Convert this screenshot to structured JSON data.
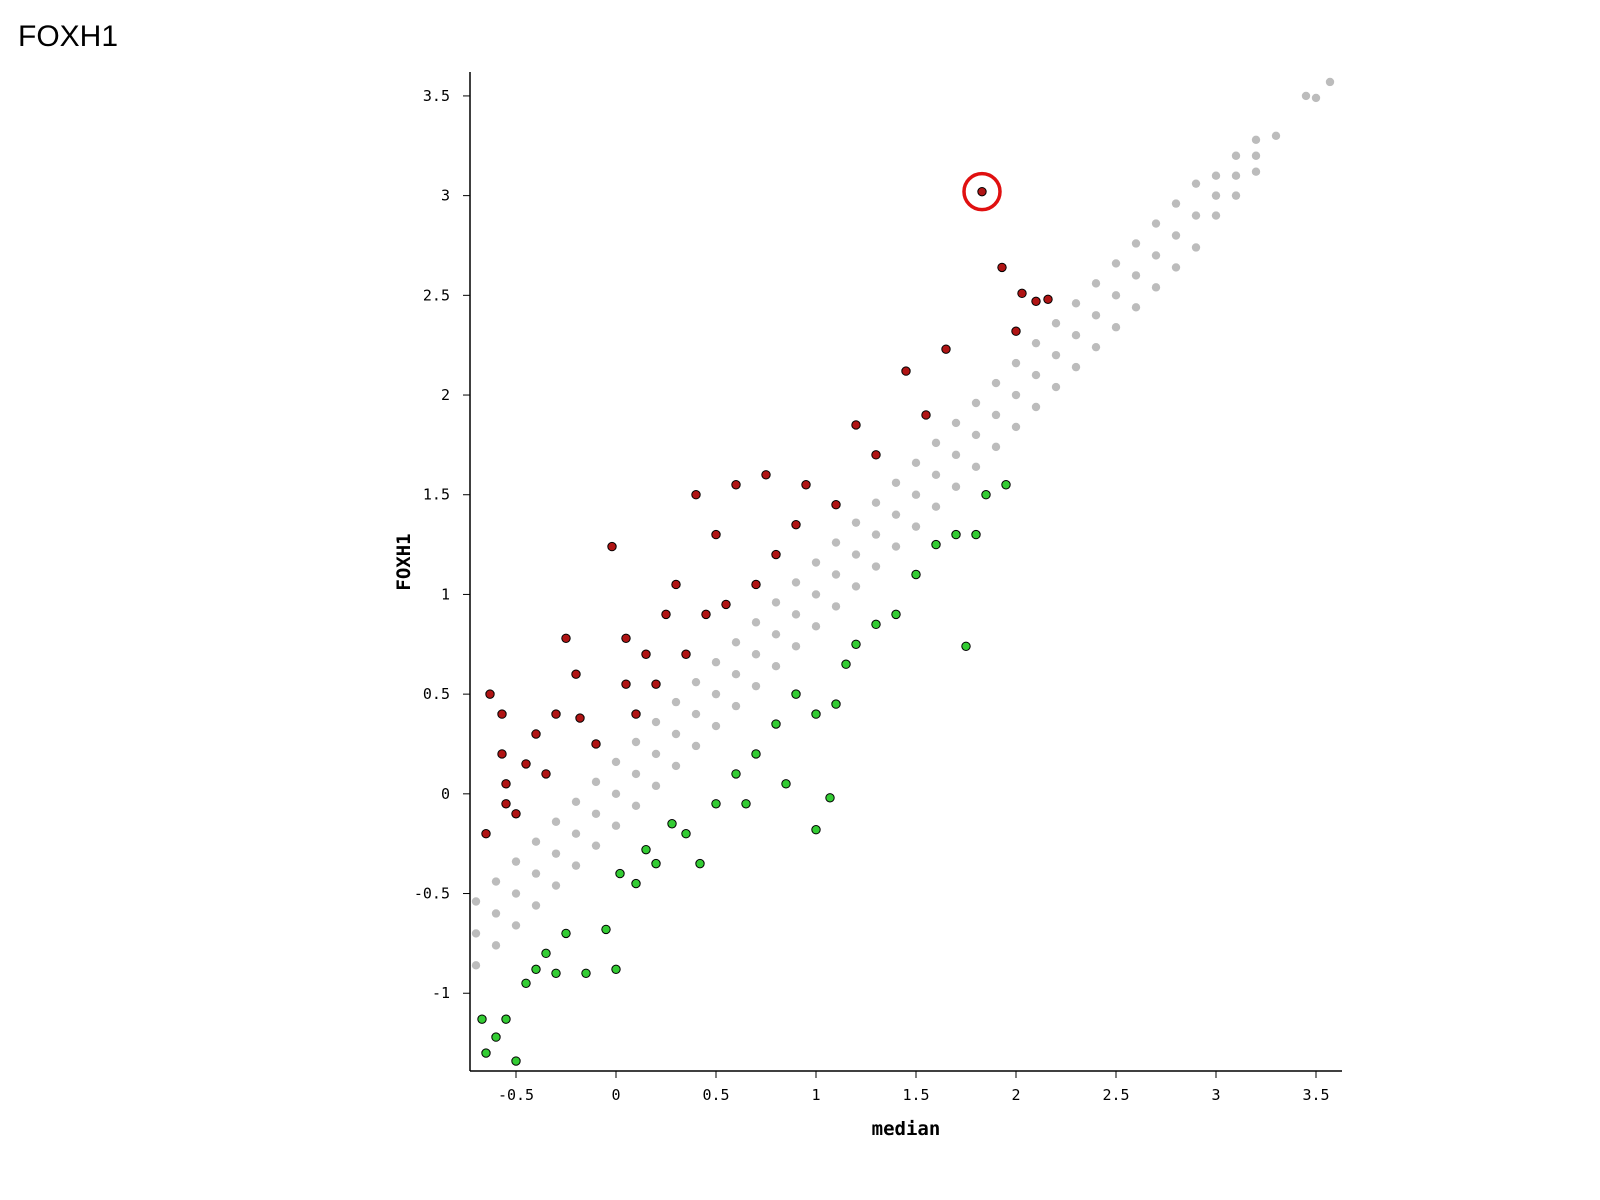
{
  "page_title": "FOXH1",
  "chart_data": {
    "type": "scatter",
    "x_label": "median",
    "y_label": "FOXH1",
    "xlim": [
      -0.73,
      3.63
    ],
    "ylim": [
      -1.39,
      3.62
    ],
    "xticks": [
      -0.5,
      0,
      0.5,
      1,
      1.5,
      2,
      2.5,
      3,
      3.5
    ],
    "yticks": [
      -1,
      -0.5,
      0,
      0.5,
      1,
      1.5,
      2,
      2.5,
      3,
      3.5
    ],
    "highlight_color": "#e01010",
    "series": [
      {
        "color": "#bcbcbc",
        "stroke": "none",
        "x": [
          -0.7,
          -0.7,
          -0.7,
          -0.6,
          -0.6,
          -0.6,
          -0.5,
          -0.5,
          -0.5,
          -0.4,
          -0.4,
          -0.4,
          -0.3,
          -0.3,
          -0.3,
          -0.2,
          -0.2,
          -0.2,
          -0.1,
          -0.1,
          -0.1,
          0,
          0,
          0,
          0.1,
          0.1,
          0.1,
          0.2,
          0.2,
          0.2,
          0.3,
          0.3,
          0.3,
          0.4,
          0.4,
          0.4,
          0.5,
          0.5,
          0.5,
          0.6,
          0.6,
          0.6,
          0.7,
          0.7,
          0.7,
          0.8,
          0.8,
          0.8,
          0.9,
          0.9,
          0.9,
          1.0,
          1.0,
          1.0,
          1.1,
          1.1,
          1.1,
          1.2,
          1.2,
          1.2,
          1.3,
          1.3,
          1.3,
          1.4,
          1.4,
          1.4,
          1.5,
          1.5,
          1.5,
          1.6,
          1.6,
          1.6,
          1.7,
          1.7,
          1.7,
          1.8,
          1.8,
          1.8,
          1.9,
          1.9,
          1.9,
          2.0,
          2.0,
          2.0,
          2.1,
          2.1,
          2.1,
          2.2,
          2.2,
          2.2,
          2.3,
          2.3,
          2.3,
          2.4,
          2.4,
          2.4,
          2.5,
          2.5,
          2.5,
          2.6,
          2.6,
          2.6,
          2.7,
          2.7,
          2.7,
          2.8,
          2.8,
          2.8,
          2.9,
          2.9,
          2.9,
          3.0,
          3.0,
          3.0,
          3.1,
          3.1,
          3.1,
          3.2,
          3.2,
          3.2,
          3.3,
          3.45,
          3.5,
          3.57
        ],
        "y": [
          -0.86,
          -0.7,
          -0.54,
          -0.76,
          -0.6,
          -0.44,
          -0.66,
          -0.5,
          -0.34,
          -0.56,
          -0.4,
          -0.24,
          -0.46,
          -0.3,
          -0.14,
          -0.36,
          -0.2,
          -0.04,
          -0.26,
          -0.1,
          0.06,
          -0.16,
          0,
          0.16,
          -0.06,
          0.1,
          0.26,
          0.04,
          0.2,
          0.36,
          0.14,
          0.3,
          0.46,
          0.24,
          0.4,
          0.56,
          0.34,
          0.5,
          0.66,
          0.44,
          0.6,
          0.76,
          0.54,
          0.7,
          0.86,
          0.64,
          0.8,
          0.96,
          0.74,
          0.9,
          1.06,
          0.84,
          1.0,
          1.16,
          0.94,
          1.1,
          1.26,
          1.04,
          1.2,
          1.36,
          1.14,
          1.3,
          1.46,
          1.24,
          1.4,
          1.56,
          1.34,
          1.5,
          1.66,
          1.44,
          1.6,
          1.76,
          1.54,
          1.7,
          1.86,
          1.64,
          1.8,
          1.96,
          1.74,
          1.9,
          2.06,
          1.84,
          2.0,
          2.16,
          1.94,
          2.1,
          2.26,
          2.04,
          2.2,
          2.36,
          2.14,
          2.3,
          2.46,
          2.24,
          2.4,
          2.56,
          2.34,
          2.5,
          2.66,
          2.44,
          2.6,
          2.76,
          2.54,
          2.7,
          2.86,
          2.64,
          2.8,
          2.96,
          2.74,
          2.9,
          3.06,
          2.9,
          3.0,
          3.1,
          3.0,
          3.1,
          3.2,
          3.12,
          3.2,
          3.28,
          3.3,
          3.5,
          3.49,
          3.57
        ]
      },
      {
        "color": "#b01414",
        "stroke": "#000000",
        "x": [
          -0.65,
          -0.63,
          -0.57,
          -0.55,
          -0.55,
          -0.57,
          -0.5,
          -0.45,
          -0.4,
          -0.35,
          -0.3,
          -0.25,
          -0.2,
          -0.18,
          -0.1,
          -0.02,
          0.05,
          0.05,
          0.1,
          0.15,
          0.2,
          0.25,
          0.3,
          0.35,
          0.4,
          0.45,
          0.5,
          0.55,
          0.6,
          0.7,
          0.75,
          0.8,
          0.9,
          0.95,
          1.1,
          1.2,
          1.3,
          1.45,
          1.55,
          1.65,
          1.83,
          1.93,
          2.03,
          2.0,
          2.1,
          2.16
        ],
        "y": [
          -0.2,
          0.5,
          0.4,
          0.05,
          -0.05,
          0.2,
          -0.1,
          0.15,
          0.3,
          0.1,
          0.4,
          0.78,
          0.6,
          0.38,
          0.25,
          1.24,
          0.55,
          0.78,
          0.4,
          0.7,
          0.55,
          0.9,
          1.05,
          0.7,
          1.5,
          0.9,
          1.3,
          0.95,
          1.55,
          1.05,
          1.6,
          1.2,
          1.35,
          1.55,
          1.45,
          1.85,
          1.7,
          2.12,
          1.9,
          2.23,
          3.02,
          2.64,
          2.51,
          2.32,
          2.47,
          2.48
        ]
      },
      {
        "color": "#33cc33",
        "stroke": "#000000",
        "x": [
          -0.67,
          -0.65,
          -0.6,
          -0.55,
          -0.5,
          -0.45,
          -0.4,
          -0.35,
          -0.3,
          -0.25,
          -0.15,
          -0.05,
          0,
          0.02,
          0.1,
          0.15,
          0.2,
          0.28,
          0.35,
          0.42,
          0.5,
          0.6,
          0.65,
          0.7,
          0.8,
          0.85,
          0.9,
          1.0,
          1.07,
          1.0,
          1.1,
          1.15,
          1.2,
          1.3,
          1.4,
          1.5,
          1.6,
          1.7,
          1.75,
          1.8,
          1.85,
          1.95
        ],
        "y": [
          -1.13,
          -1.3,
          -1.22,
          -1.13,
          -1.34,
          -0.95,
          -0.88,
          -0.8,
          -0.9,
          -0.7,
          -0.9,
          -0.68,
          -0.88,
          -0.4,
          -0.45,
          -0.28,
          -0.35,
          -0.15,
          -0.2,
          -0.35,
          -0.05,
          0.1,
          -0.05,
          0.2,
          0.35,
          0.05,
          0.5,
          -0.18,
          -0.02,
          0.4,
          0.45,
          0.65,
          0.75,
          0.85,
          0.9,
          1.1,
          1.25,
          1.3,
          0.74,
          1.3,
          1.5,
          1.55
        ]
      }
    ]
  }
}
